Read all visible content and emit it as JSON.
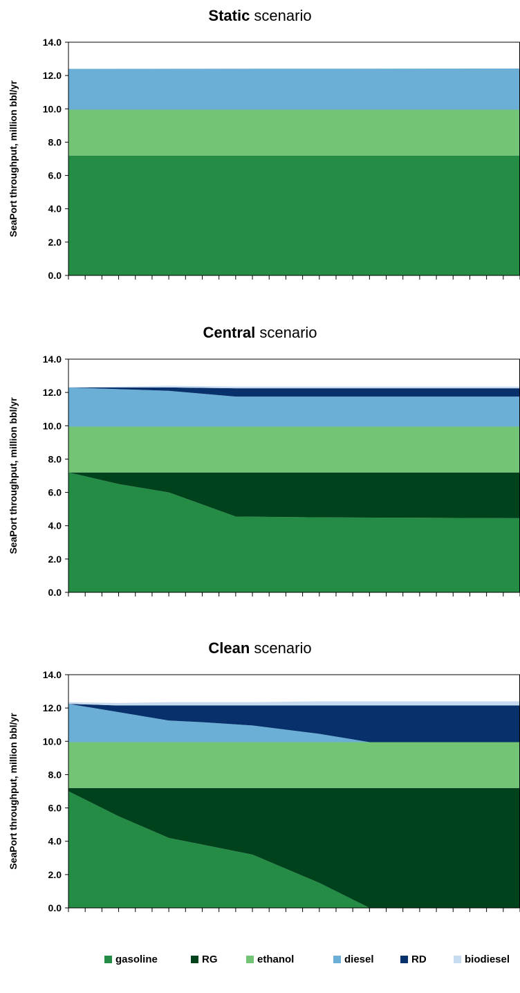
{
  "colors": {
    "gasoline": "#258C45",
    "RG": "#00421C",
    "ethanol": "#74C476",
    "diesel": "#6BAED6",
    "RD": "#08306B",
    "biodiesel": "#C6DBEF"
  },
  "legend": {
    "items": [
      {
        "key": "gasoline",
        "label": "gasoline"
      },
      {
        "key": "RG",
        "label": "RG"
      },
      {
        "key": "ethanol",
        "label": "ethanol"
      },
      {
        "key": "diesel",
        "label": "diesel"
      },
      {
        "key": "RD",
        "label": "RD"
      },
      {
        "key": "biodiesel",
        "label": "biodiesel"
      }
    ]
  },
  "chart_data": [
    {
      "type": "area",
      "stacked": true,
      "title_bold": "Static",
      "title_rest": " scenario",
      "ylabel": "SeaPort throughput, million bbl/yr",
      "ylim": [
        0,
        14
      ],
      "yticks": [
        "0.0",
        "2.0",
        "4.0",
        "6.0",
        "8.0",
        "10.0",
        "12.0",
        "14.0"
      ],
      "x_count": 28,
      "series": [
        {
          "key": "gasoline",
          "x": [
            0,
            27
          ],
          "values": [
            7.2,
            7.2
          ]
        },
        {
          "key": "RG",
          "x": [
            0,
            27
          ],
          "values": [
            0,
            0
          ]
        },
        {
          "key": "ethanol",
          "x": [
            0,
            27
          ],
          "values": [
            2.75,
            2.75
          ]
        },
        {
          "key": "diesel",
          "x": [
            0,
            27
          ],
          "values": [
            2.45,
            2.47
          ]
        },
        {
          "key": "RD",
          "x": [
            0,
            27
          ],
          "values": [
            0,
            0
          ]
        },
        {
          "key": "biodiesel",
          "x": [
            0,
            27
          ],
          "values": [
            0,
            0
          ]
        }
      ]
    },
    {
      "type": "area",
      "stacked": true,
      "title_bold": "Central",
      "title_rest": " scenario",
      "ylabel": "SeaPort throughput, million bbl/yr",
      "ylim": [
        0,
        14
      ],
      "yticks": [
        "0.0",
        "2.0",
        "4.0",
        "6.0",
        "8.0",
        "10.0",
        "12.0",
        "14.0"
      ],
      "x_count": 28,
      "series": [
        {
          "key": "gasoline",
          "x": [
            0,
            3,
            6,
            10,
            15,
            27
          ],
          "values": [
            7.2,
            6.5,
            6.0,
            4.55,
            4.5,
            4.45
          ]
        },
        {
          "key": "RG",
          "x": [
            0,
            3,
            6,
            10,
            15,
            27
          ],
          "values": [
            0,
            0.7,
            1.2,
            2.65,
            2.7,
            2.75
          ]
        },
        {
          "key": "ethanol",
          "x": [
            0,
            27
          ],
          "values": [
            2.75,
            2.75
          ]
        },
        {
          "key": "diesel",
          "x": [
            0,
            3,
            6,
            10,
            15,
            27
          ],
          "values": [
            2.35,
            2.25,
            2.15,
            1.8,
            1.8,
            1.8
          ]
        },
        {
          "key": "RD",
          "x": [
            0,
            3,
            6,
            10,
            15,
            27
          ],
          "values": [
            0.0,
            0.1,
            0.2,
            0.5,
            0.5,
            0.5
          ]
        },
        {
          "key": "biodiesel",
          "x": [
            0,
            3,
            6,
            10,
            15,
            27
          ],
          "values": [
            0.0,
            0.05,
            0.1,
            0.1,
            0.1,
            0.1
          ]
        }
      ]
    },
    {
      "type": "area",
      "stacked": true,
      "title_bold": "Clean",
      "title_rest": " scenario",
      "ylabel": "SeaPort throughput, million bbl/yr",
      "ylim": [
        0,
        14
      ],
      "yticks": [
        "0.0",
        "2.0",
        "4.0",
        "6.0",
        "8.0",
        "10.0",
        "12.0",
        "14.0"
      ],
      "x_count": 28,
      "series": [
        {
          "key": "gasoline",
          "x": [
            0,
            3,
            6,
            8,
            11,
            15,
            18,
            27
          ],
          "values": [
            7.0,
            5.5,
            4.2,
            3.8,
            3.2,
            1.5,
            0.0,
            0.0
          ]
        },
        {
          "key": "RG",
          "x": [
            0,
            3,
            6,
            8,
            11,
            15,
            18,
            27
          ],
          "values": [
            0.2,
            1.7,
            3.0,
            3.4,
            4.0,
            5.7,
            7.2,
            7.2
          ]
        },
        {
          "key": "ethanol",
          "x": [
            0,
            27
          ],
          "values": [
            2.75,
            2.75
          ]
        },
        {
          "key": "diesel",
          "x": [
            0,
            3,
            6,
            8,
            11,
            15,
            18,
            27
          ],
          "values": [
            2.3,
            1.8,
            1.3,
            1.2,
            1.0,
            0.5,
            0.0,
            0.0
          ]
        },
        {
          "key": "RD",
          "x": [
            0,
            3,
            6,
            8,
            11,
            15,
            18,
            27
          ],
          "values": [
            0.0,
            0.4,
            0.9,
            1.0,
            1.2,
            1.7,
            2.2,
            2.2
          ]
        },
        {
          "key": "biodiesel",
          "x": [
            0,
            3,
            6,
            8,
            11,
            15,
            18,
            27
          ],
          "values": [
            0.1,
            0.15,
            0.2,
            0.2,
            0.2,
            0.25,
            0.25,
            0.25
          ]
        }
      ]
    }
  ]
}
